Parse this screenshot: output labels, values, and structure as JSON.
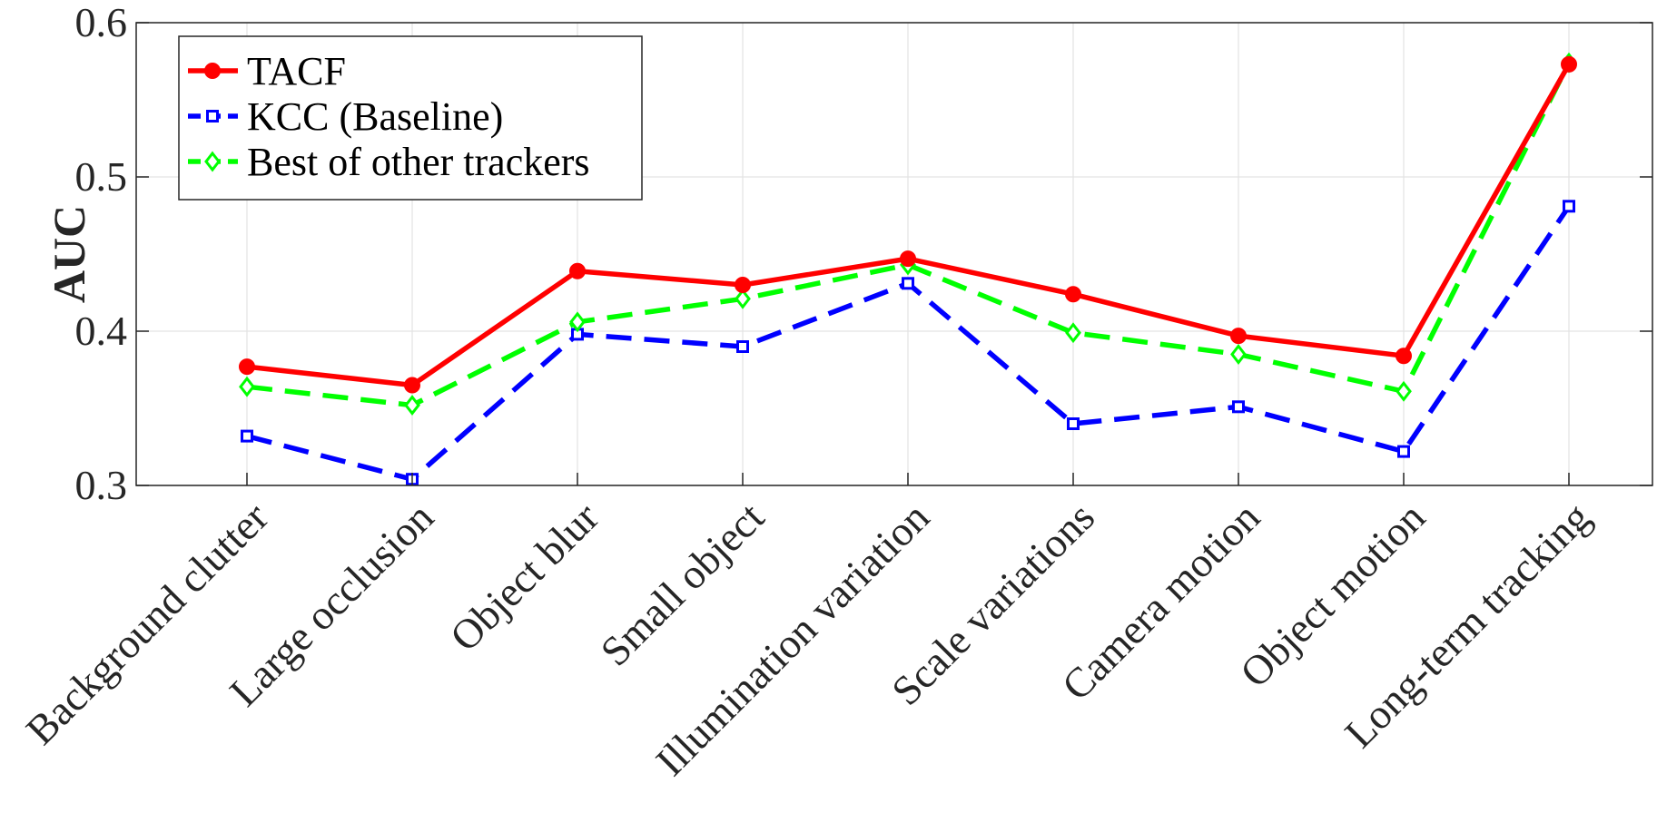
{
  "chart_data": {
    "type": "line",
    "categories": [
      "Background clutter",
      "Large occlusion",
      "Object blur",
      "Small object",
      "Illumination variation",
      "Scale variations",
      "Camera motion",
      "Object motion",
      "Long-term tracking"
    ],
    "series": [
      {
        "name": "TACF",
        "values": [
          0.377,
          0.365,
          0.439,
          0.43,
          0.447,
          0.424,
          0.397,
          0.384,
          0.573
        ],
        "color": "#ff0000",
        "marker": "circle",
        "line": "solid"
      },
      {
        "name": "KCC (Baseline)",
        "values": [
          0.332,
          0.304,
          0.398,
          0.39,
          0.431,
          0.34,
          0.351,
          0.322,
          0.481
        ],
        "color": "#0000ff",
        "marker": "square",
        "line": "dashed"
      },
      {
        "name": "Best of other trackers",
        "values": [
          0.364,
          0.352,
          0.406,
          0.421,
          0.443,
          0.399,
          0.385,
          0.361,
          0.574
        ],
        "color": "#00ff00",
        "marker": "diamond",
        "line": "dashed"
      }
    ],
    "ylabel": "AUC",
    "xlabel": "",
    "title": "",
    "ylim": [
      0.3,
      0.6
    ],
    "yticks": [
      0.3,
      0.4,
      0.5,
      0.6
    ],
    "grid": true,
    "legend_position": "top-left"
  }
}
